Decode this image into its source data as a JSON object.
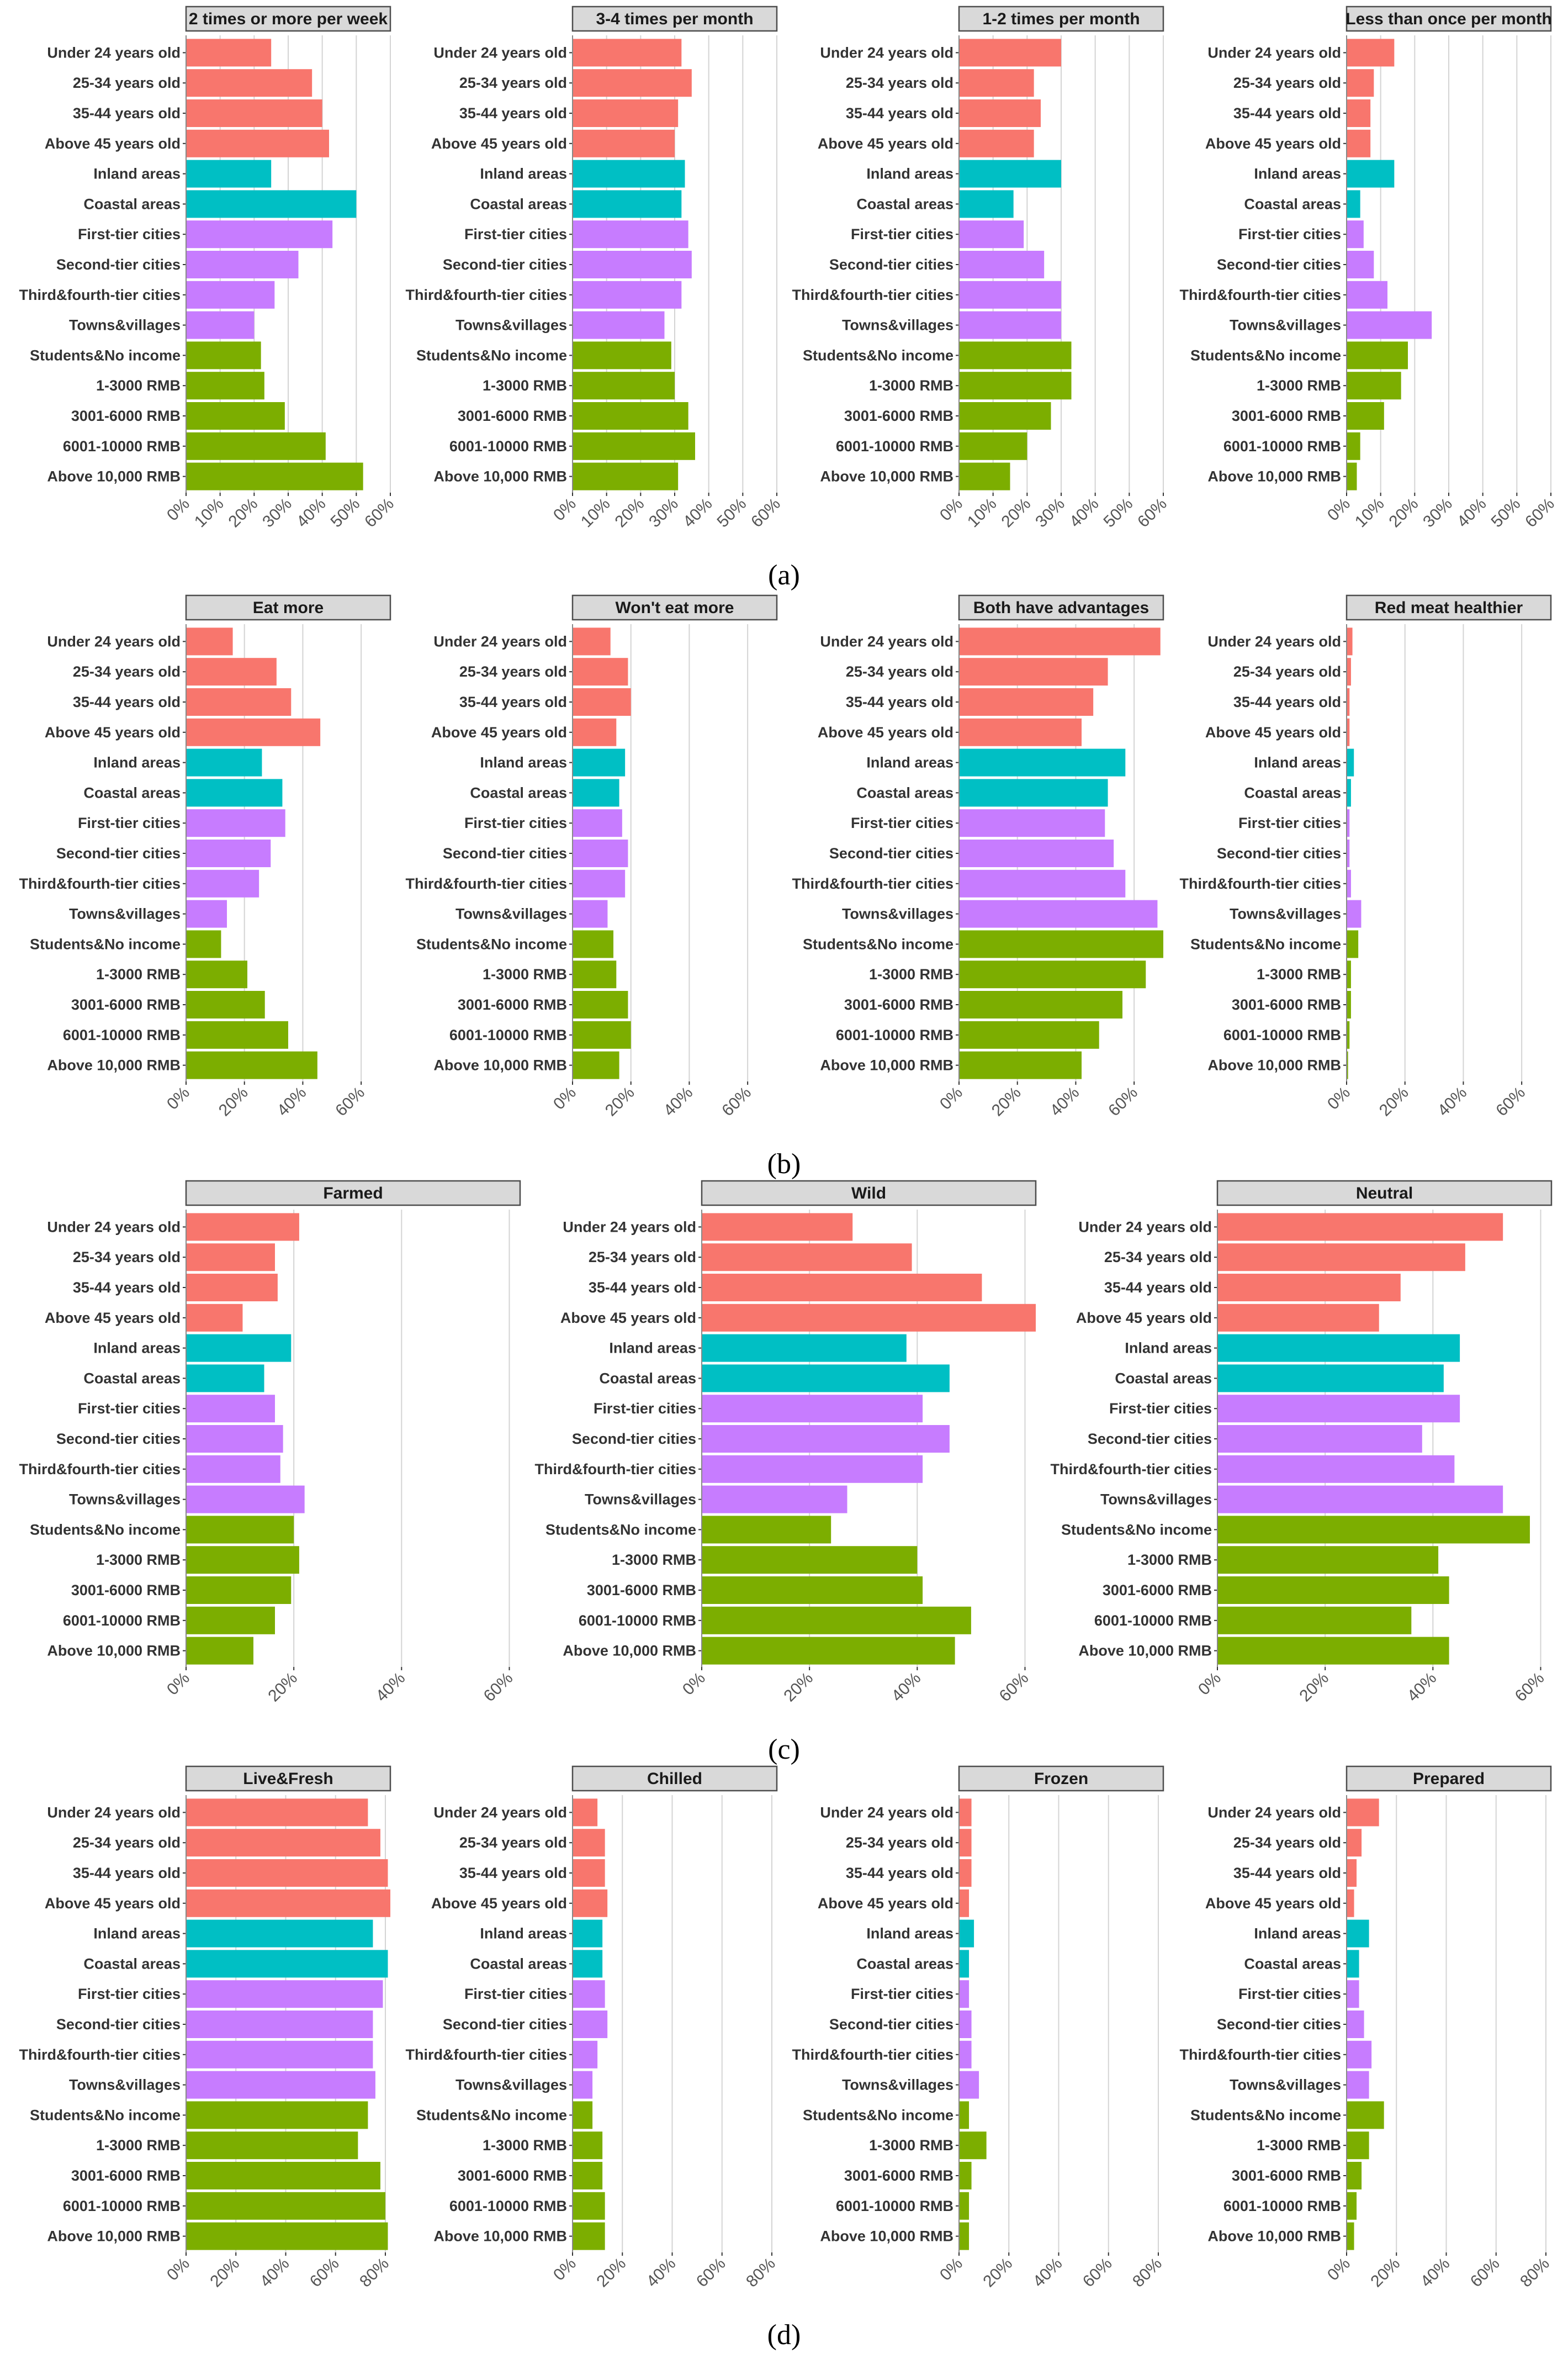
{
  "colors": {
    "age": "#f8766d",
    "region": "#00bfc4",
    "city": "#c77cff",
    "income": "#7cae00"
  },
  "categories": [
    "Under 24 years old",
    "25-34 years old",
    "35-44 years old",
    "Above 45 years old",
    "Inland areas",
    "Coastal areas",
    "First-tier cities",
    "Second-tier cities",
    "Third&fourth-tier cities",
    "Towns&villages",
    "Students&No income",
    "1-3000 RMB",
    "3001-6000 RMB",
    "6001-10000 RMB",
    "Above 10,000 RMB"
  ],
  "category_groups": [
    "age",
    "age",
    "age",
    "age",
    "region",
    "region",
    "city",
    "city",
    "city",
    "city",
    "income",
    "income",
    "income",
    "income",
    "income"
  ],
  "chart_data": [
    {
      "figure": "(a)",
      "type": "bar",
      "orientation": "horizontal",
      "xlim": [
        0,
        60
      ],
      "xticks": [
        "0%",
        "10%",
        "20%",
        "30%",
        "40%",
        "50%",
        "60%"
      ],
      "xtick_values": [
        0,
        10,
        20,
        30,
        40,
        50,
        60
      ],
      "panels": [
        {
          "title": "2 times or more per week",
          "values": [
            25,
            37,
            40,
            42,
            25,
            50,
            43,
            33,
            26,
            20,
            22,
            23,
            29,
            41,
            52
          ]
        },
        {
          "title": "3-4 times per month",
          "values": [
            32,
            35,
            31,
            30,
            33,
            32,
            34,
            35,
            32,
            27,
            29,
            30,
            34,
            36,
            31
          ]
        },
        {
          "title": "1-2 times per month",
          "values": [
            30,
            22,
            24,
            22,
            30,
            16,
            19,
            25,
            30,
            30,
            33,
            33,
            27,
            20,
            15
          ]
        },
        {
          "title": "Less than once per month",
          "values": [
            14,
            8,
            7,
            7,
            14,
            4,
            5,
            8,
            12,
            25,
            18,
            16,
            11,
            4,
            3
          ]
        }
      ]
    },
    {
      "figure": "(b)",
      "type": "bar",
      "orientation": "horizontal",
      "xlim": [
        0,
        70
      ],
      "xticks": [
        "0%",
        "20%",
        "40%",
        "60%"
      ],
      "xtick_values": [
        0,
        20,
        40,
        60
      ],
      "panels": [
        {
          "title": "Eat more",
          "values": [
            16,
            31,
            36,
            46,
            26,
            33,
            34,
            29,
            25,
            14,
            12,
            21,
            27,
            35,
            45
          ]
        },
        {
          "title": "Won't eat more",
          "values": [
            13,
            19,
            20,
            15,
            18,
            16,
            17,
            19,
            18,
            12,
            14,
            15,
            19,
            20,
            16
          ]
        },
        {
          "title": "Both have advantages",
          "values": [
            69,
            51,
            46,
            42,
            57,
            51,
            50,
            53,
            57,
            68,
            70,
            64,
            56,
            48,
            42
          ]
        },
        {
          "title": "Red meat healthier",
          "values": [
            2,
            1.5,
            1,
            1,
            2.5,
            1.5,
            1,
            1,
            1.5,
            5,
            4,
            1.5,
            1.5,
            1,
            0.5
          ]
        }
      ]
    },
    {
      "figure": "(c)",
      "type": "bar",
      "orientation": "horizontal",
      "xlim": [
        0,
        62
      ],
      "xticks": [
        "0%",
        "20%",
        "40%",
        "60%"
      ],
      "xtick_values": [
        0,
        20,
        40,
        60
      ],
      "panels": [
        {
          "title": "Farmed",
          "values": [
            21,
            16.5,
            17,
            10.5,
            19.5,
            14.5,
            16.5,
            18,
            17.5,
            22,
            20,
            21,
            19.5,
            16.5,
            12.5
          ]
        },
        {
          "title": "Wild",
          "values": [
            28,
            39,
            52,
            62,
            38,
            46,
            41,
            46,
            41,
            27,
            24,
            40,
            41,
            50,
            47
          ]
        },
        {
          "title": "Neutral",
          "values": [
            53,
            46,
            34,
            30,
            45,
            42,
            45,
            38,
            44,
            53,
            58,
            41,
            43,
            36,
            43
          ]
        }
      ]
    },
    {
      "figure": "(d)",
      "type": "bar",
      "orientation": "horizontal",
      "xlim": [
        0,
        82
      ],
      "xticks": [
        "0%",
        "20%",
        "40%",
        "60%",
        "80%"
      ],
      "xtick_values": [
        0,
        20,
        40,
        60,
        80
      ],
      "panels": [
        {
          "title": "Live&Fresh",
          "values": [
            73,
            78,
            81,
            82,
            75,
            81,
            79,
            75,
            75,
            76,
            73,
            69,
            78,
            80,
            81
          ]
        },
        {
          "title": "Chilled",
          "values": [
            10,
            13,
            13,
            14,
            12,
            12,
            13,
            14,
            10,
            8,
            8,
            12,
            12,
            13,
            13
          ]
        },
        {
          "title": "Frozen",
          "values": [
            5,
            5,
            5,
            4,
            6,
            4,
            4,
            5,
            5,
            8,
            4,
            11,
            5,
            4,
            4
          ]
        },
        {
          "title": "Prepared",
          "values": [
            13,
            6,
            4,
            3,
            9,
            5,
            5,
            7,
            10,
            9,
            15,
            9,
            6,
            4,
            3
          ]
        }
      ]
    }
  ]
}
